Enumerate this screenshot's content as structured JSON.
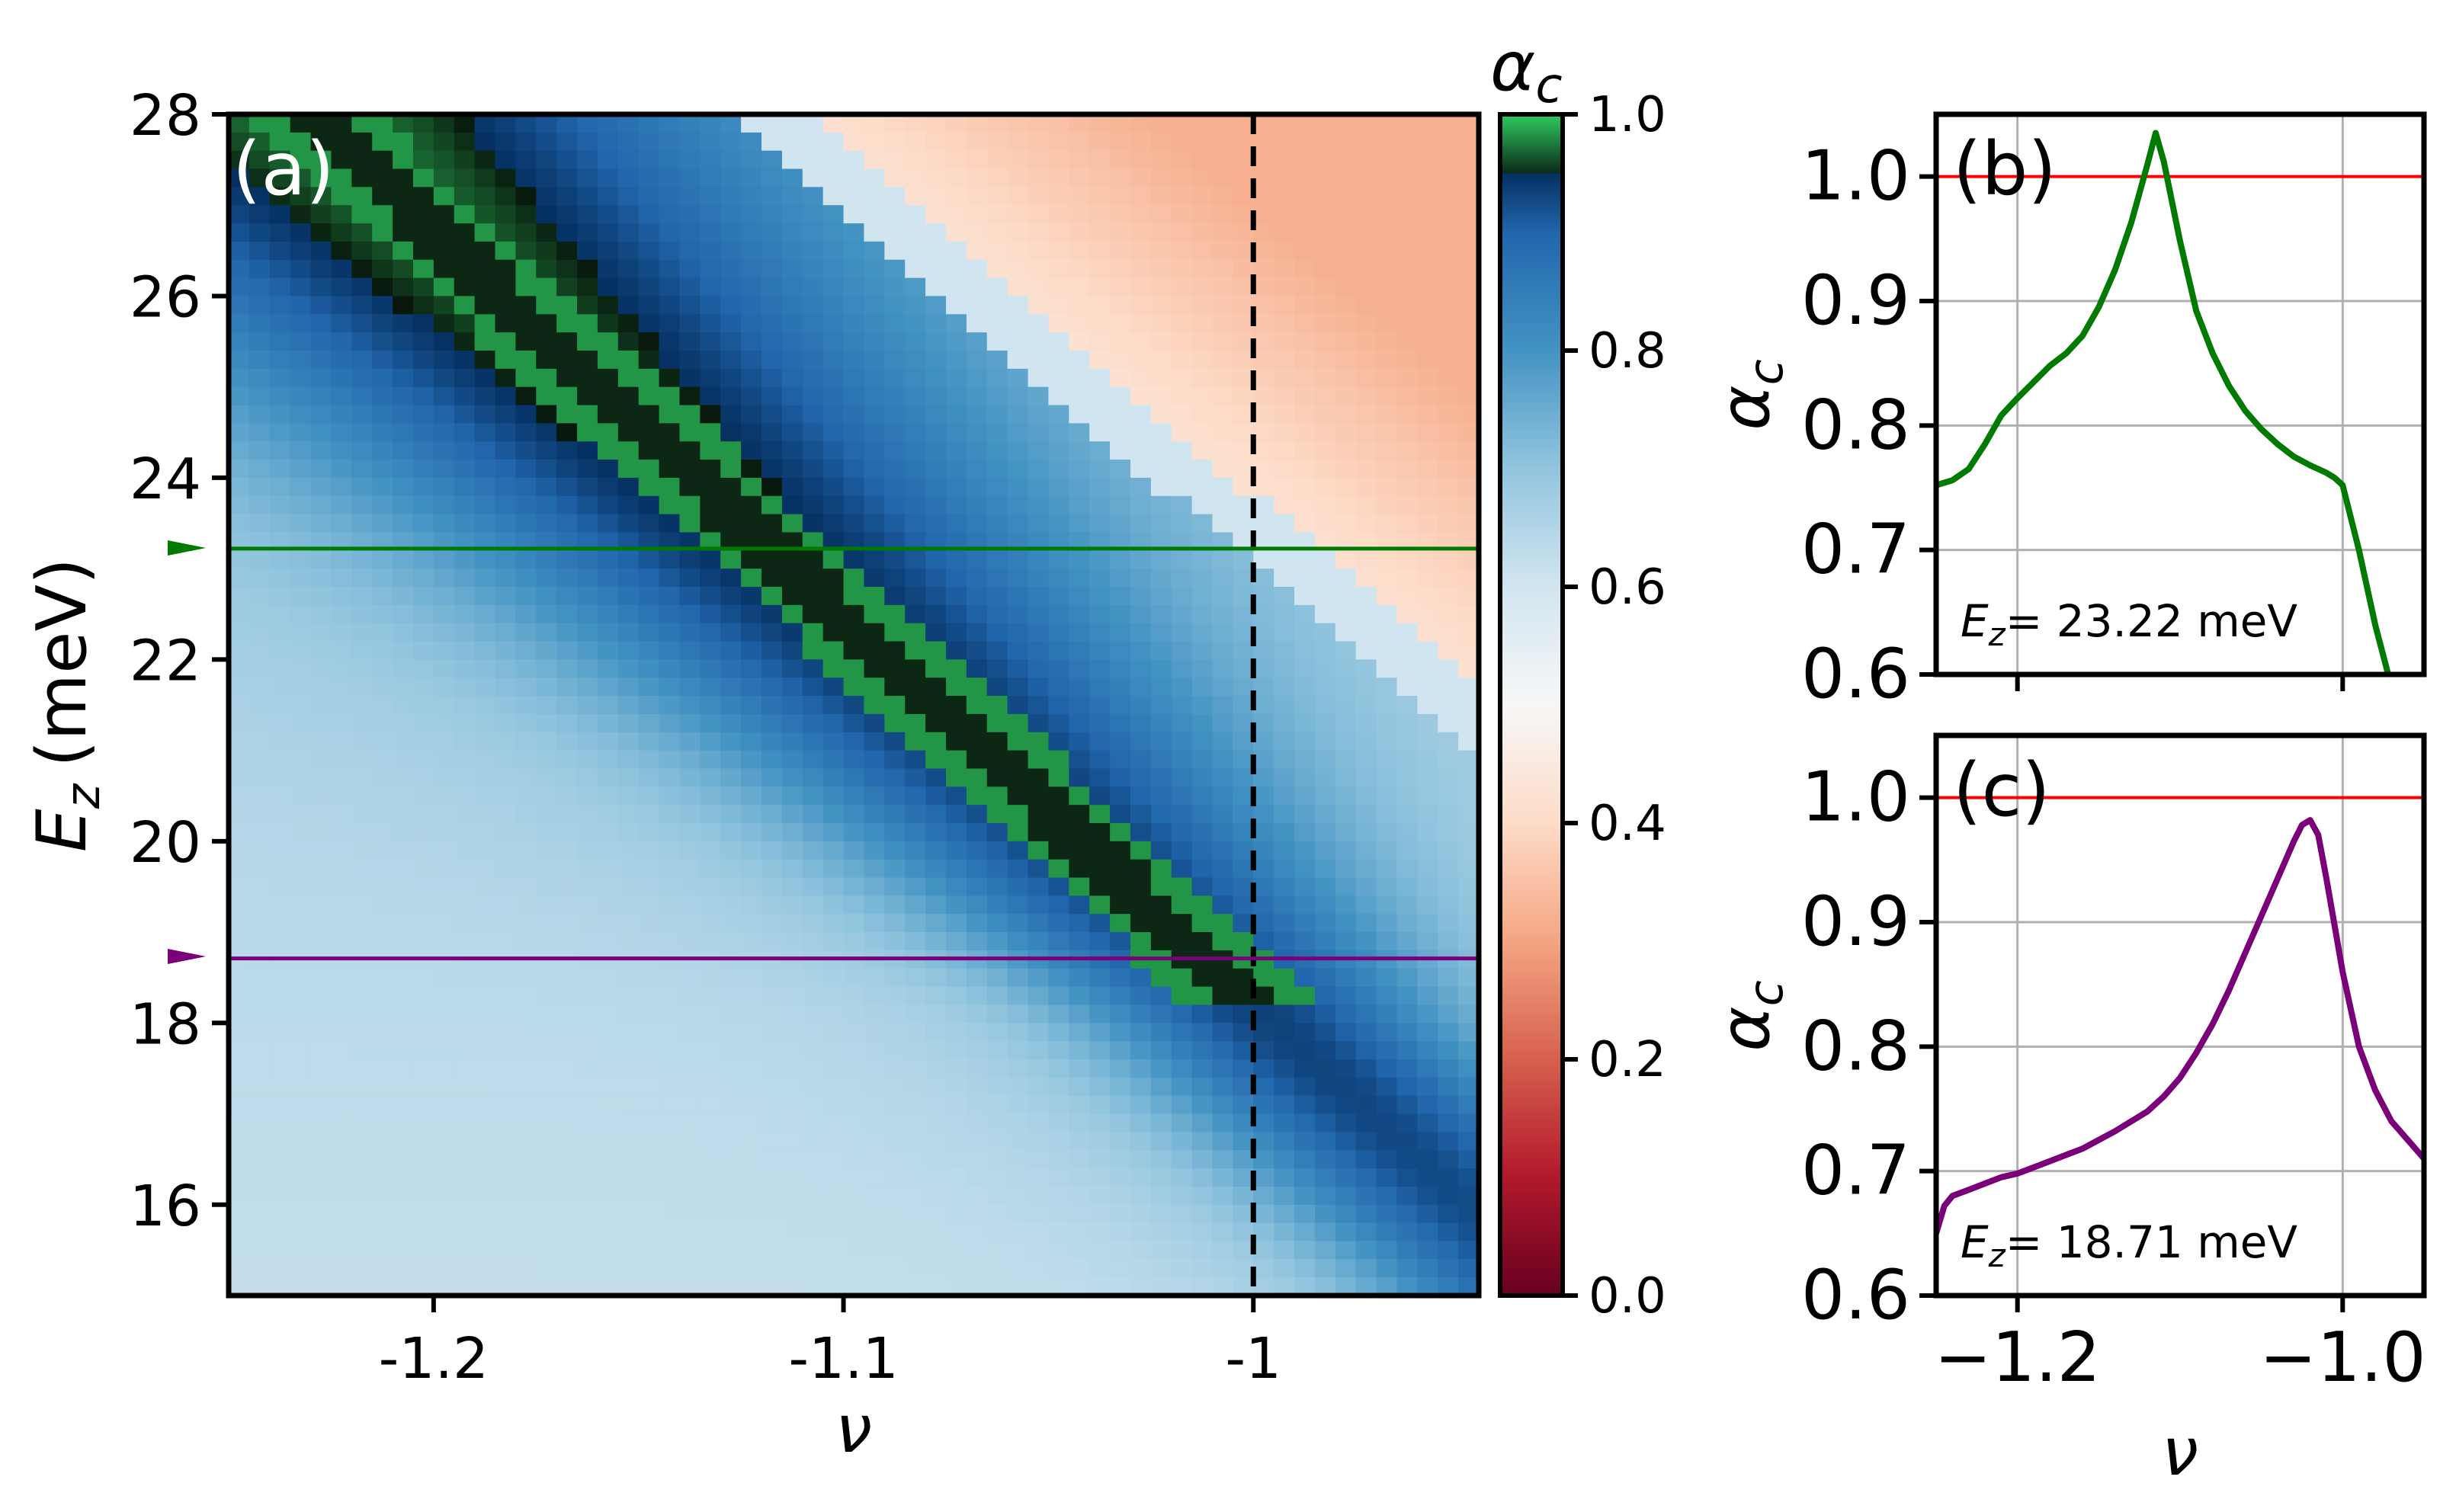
{
  "chart_data": [
    {
      "id": "a",
      "type": "heatmap",
      "panel_label": "(a)",
      "xlabel": "ν",
      "ylabel_var": "E",
      "ylabel_sub": "z",
      "ylabel_unit": "(meV)",
      "xlim": [
        -1.25,
        -0.945
      ],
      "ylim": [
        15,
        28
      ],
      "xticks": [
        -1.2,
        -1.1,
        -1.0
      ],
      "xtick_labels": [
        "-1.2",
        "-1.1",
        "-1"
      ],
      "yticks": [
        16,
        18,
        20,
        22,
        24,
        26,
        28
      ],
      "ytick_labels": [
        "16",
        "18",
        "20",
        "22",
        "24",
        "26",
        "28"
      ],
      "colorbar": {
        "label_var": "α",
        "label_sub": "c",
        "range": [
          0,
          1
        ],
        "ticks": [
          0.0,
          0.2,
          0.4,
          0.6,
          0.8,
          1.0
        ],
        "tick_labels": [
          "0.0",
          "0.2",
          "0.4",
          "0.6",
          "0.8",
          "1.0"
        ],
        "colormap": "RdBu with green above 0.95"
      },
      "grid_resolution": {
        "nx": 61,
        "ny": 65
      },
      "lines": [
        {
          "orientation": "vertical",
          "x": -1.0,
          "style": "dashed",
          "color": "#000000"
        },
        {
          "orientation": "horizontal",
          "y": 23.22,
          "color": "#007a00"
        },
        {
          "orientation": "horizontal",
          "y": 18.71,
          "color": "#7a007a"
        }
      ]
    },
    {
      "id": "b",
      "type": "line",
      "panel_label": "(b)",
      "xlabel": "",
      "ylabel_var": "α",
      "ylabel_sub": "c",
      "xlim": [
        -1.25,
        -0.95
      ],
      "ylim": [
        0.6,
        1.05
      ],
      "xticks": [
        -1.2,
        -1.0
      ],
      "yticks": [
        0.6,
        0.7,
        0.8,
        0.9,
        1.0
      ],
      "ytick_labels": [
        "0.6",
        "0.7",
        "0.8",
        "0.9",
        "1.0"
      ],
      "grid": true,
      "reference_line": {
        "y": 1.0,
        "color": "#ff0000"
      },
      "annotation": "= 23.22 meV",
      "annotation_var": "E",
      "annotation_sub": "z",
      "series": [
        {
          "color": "#007a00",
          "x": [
            -1.25,
            -1.24,
            -1.23,
            -1.22,
            -1.21,
            -1.2,
            -1.19,
            -1.18,
            -1.17,
            -1.16,
            -1.15,
            -1.14,
            -1.13,
            -1.12,
            -1.115,
            -1.11,
            -1.1,
            -1.09,
            -1.08,
            -1.07,
            -1.06,
            -1.05,
            -1.04,
            -1.03,
            -1.02,
            -1.01,
            -1.005,
            -1.0,
            -0.99,
            -0.98,
            -0.97
          ],
          "y": [
            0.752,
            0.756,
            0.765,
            0.785,
            0.808,
            0.822,
            0.835,
            0.848,
            0.858,
            0.872,
            0.895,
            0.925,
            0.963,
            1.01,
            1.035,
            1.012,
            0.948,
            0.892,
            0.858,
            0.832,
            0.812,
            0.797,
            0.785,
            0.775,
            0.768,
            0.762,
            0.758,
            0.752,
            0.7,
            0.64,
            0.59
          ]
        }
      ]
    },
    {
      "id": "c",
      "type": "line",
      "panel_label": "(c)",
      "xlabel": "ν",
      "ylabel_var": "α",
      "ylabel_sub": "c",
      "xlim": [
        -1.25,
        -0.95
      ],
      "ylim": [
        0.6,
        1.05
      ],
      "xticks": [
        -1.2,
        -1.0
      ],
      "xtick_labels": [
        "−1.2",
        "−1.0"
      ],
      "yticks": [
        0.6,
        0.7,
        0.8,
        0.9,
        1.0
      ],
      "ytick_labels": [
        "0.6",
        "0.7",
        "0.8",
        "0.9",
        "1.0"
      ],
      "grid": true,
      "reference_line": {
        "y": 1.0,
        "color": "#ff0000"
      },
      "annotation": "= 18.71 meV",
      "annotation_var": "E",
      "annotation_sub": "z",
      "series": [
        {
          "color": "#7a007a",
          "x": [
            -1.25,
            -1.245,
            -1.24,
            -1.23,
            -1.22,
            -1.21,
            -1.2,
            -1.19,
            -1.18,
            -1.17,
            -1.16,
            -1.15,
            -1.14,
            -1.13,
            -1.12,
            -1.11,
            -1.1,
            -1.09,
            -1.08,
            -1.07,
            -1.06,
            -1.05,
            -1.04,
            -1.03,
            -1.025,
            -1.02,
            -1.015,
            -1.01,
            -1.0,
            -0.99,
            -0.98,
            -0.97,
            -0.96,
            -0.95
          ],
          "y": [
            0.65,
            0.672,
            0.68,
            0.685,
            0.69,
            0.695,
            0.698,
            0.703,
            0.708,
            0.713,
            0.718,
            0.725,
            0.732,
            0.74,
            0.748,
            0.76,
            0.775,
            0.795,
            0.818,
            0.845,
            0.875,
            0.905,
            0.935,
            0.965,
            0.978,
            0.982,
            0.97,
            0.935,
            0.86,
            0.8,
            0.765,
            0.74,
            0.725,
            0.71
          ]
        }
      ]
    }
  ]
}
